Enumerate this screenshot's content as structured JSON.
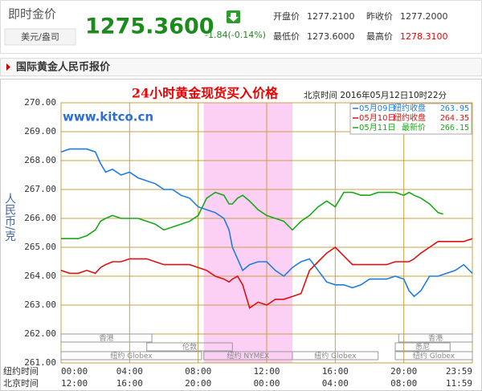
{
  "header": {
    "title": "即时金价",
    "unit": "美元/盎司",
    "price": "1275.3600",
    "change": "-1.84(-0.14%)",
    "quotes": [
      {
        "label": "开盘价",
        "value": "1277.2100"
      },
      {
        "label": "昨收价",
        "value": "1277.2000"
      },
      {
        "label": "最低价",
        "value": "1273.6000"
      },
      {
        "label": "最高价",
        "value": "1278.3100"
      }
    ]
  },
  "tab": "国际黄金人民币报价",
  "chart_data": {
    "type": "line",
    "title": "24小时黄金现货买入价格",
    "subtitle": "北京时间  2016年05月12日10时22分",
    "watermark": "www.kitco.cn",
    "y_label": "人民币/克",
    "ylim": [
      261,
      270
    ],
    "yticks": [
      {
        "value": 261,
        "label": "261.00"
      },
      {
        "value": 262,
        "label": "262.00"
      },
      {
        "value": 263,
        "label": "263.00"
      },
      {
        "value": 264,
        "label": "264.00"
      },
      {
        "value": 265,
        "label": "265.00"
      },
      {
        "value": 266,
        "label": "266.00"
      },
      {
        "value": 267,
        "label": "267.00"
      },
      {
        "value": 268,
        "label": "268.00"
      },
      {
        "value": 269,
        "label": "269.00"
      },
      {
        "value": 270,
        "label": "270.00"
      }
    ],
    "xlim": [
      0,
      24
    ],
    "x_axis_label": "纽约时间",
    "x2_axis_label": "北京时间",
    "xticks": [
      {
        "value": 0,
        "label": "00:00"
      },
      {
        "value": 4,
        "label": "04:00"
      },
      {
        "value": 8,
        "label": "08:00"
      },
      {
        "value": 12,
        "label": "12:00"
      },
      {
        "value": 16,
        "label": "16:00"
      },
      {
        "value": 20,
        "label": "20:00"
      },
      {
        "value": 24,
        "label": "23:59"
      }
    ],
    "x2_labels": [
      "12:00",
      "16:00",
      "20:00",
      "00:00",
      "04:00",
      "08:00",
      "11:59"
    ],
    "grid": true,
    "sessions": [
      {
        "label": "香港",
        "start": 0,
        "end": 5.3
      },
      {
        "label": "香港",
        "start": 19.7,
        "end": 24
      },
      {
        "label": "伦敦",
        "start": 5,
        "end": 10
      },
      {
        "label": "悉尼",
        "start": 19.5,
        "end": 22.7
      },
      {
        "label": "纽约 Globex",
        "start": 0,
        "end": 8.2
      },
      {
        "label": "纽约 NYMEX",
        "start": 8.33,
        "end": 13.5
      },
      {
        "label": "纽约 Globex",
        "start": 13.5,
        "end": 18.5
      },
      {
        "label": "纽约 Globex",
        "start": 19.5,
        "end": 24
      }
    ],
    "series": [
      {
        "name": "05月09日",
        "note": "纽约收盘",
        "last": 263.95,
        "color": "#1e7ce6",
        "x": [
          0,
          0.5,
          1,
          1.5,
          2,
          2.3,
          2.6,
          3,
          3.5,
          4,
          4.5,
          5,
          5.5,
          6,
          6.5,
          7,
          7.5,
          8,
          8.5,
          9,
          9.5,
          9.8,
          10,
          10.3,
          10.6,
          11,
          11.5,
          12,
          12.5,
          13,
          13.5,
          14,
          14.5,
          15,
          15.5,
          16,
          16.5,
          17,
          17.5,
          18,
          18.5,
          19,
          19.5,
          20,
          20.3,
          20.6,
          21,
          21.5,
          22,
          22.5,
          23,
          23.5,
          24
        ],
        "values": [
          268.3,
          268.4,
          268.4,
          268.4,
          268.3,
          267.9,
          267.6,
          267.7,
          267.5,
          267.6,
          267.4,
          267.3,
          267.2,
          267.0,
          267.0,
          266.8,
          266.7,
          266.4,
          266.3,
          266.2,
          266.0,
          265.6,
          265.0,
          264.6,
          264.2,
          264.4,
          264.5,
          264.5,
          264.2,
          264.0,
          264.3,
          264.5,
          264.6,
          264.2,
          263.8,
          263.7,
          263.7,
          263.6,
          263.7,
          263.9,
          263.9,
          263.9,
          264.0,
          263.9,
          263.5,
          263.3,
          263.5,
          264.0,
          264.0,
          264.1,
          264.2,
          264.4,
          264.1
        ]
      },
      {
        "name": "05月10日",
        "note": "纽约收盘",
        "last": 264.35,
        "color": "#e01010",
        "x": [
          0,
          0.5,
          1,
          1.5,
          2,
          2.3,
          2.6,
          3,
          3.5,
          4,
          4.5,
          5,
          5.5,
          6,
          6.5,
          7,
          7.5,
          8,
          8.5,
          9,
          9.5,
          9.8,
          10,
          10.3,
          10.6,
          11,
          11.5,
          12,
          12.5,
          13,
          13.5,
          14,
          14.5,
          15,
          15.5,
          16,
          16.5,
          17,
          17.5,
          18,
          18.5,
          19,
          19.5,
          20,
          20.3,
          20.6,
          21,
          21.5,
          22,
          22.5,
          23,
          23.5,
          24
        ],
        "values": [
          264.2,
          264.1,
          264.1,
          264.2,
          264.1,
          264.3,
          264.4,
          264.5,
          264.5,
          264.6,
          264.6,
          264.6,
          264.5,
          264.4,
          264.4,
          264.4,
          264.4,
          264.3,
          264.2,
          264.0,
          263.9,
          263.8,
          263.9,
          264.0,
          263.7,
          262.9,
          263.1,
          263.0,
          263.2,
          263.2,
          263.3,
          263.4,
          264.2,
          264.5,
          264.8,
          265.0,
          264.7,
          264.4,
          264.4,
          264.4,
          264.4,
          264.4,
          264.5,
          264.5,
          264.5,
          264.6,
          264.8,
          265.0,
          265.2,
          265.2,
          265.2,
          265.2,
          265.3
        ]
      },
      {
        "name": "05月11日",
        "note": "最新价",
        "last": 266.15,
        "color": "#18a818",
        "x": [
          0,
          0.5,
          1,
          1.5,
          2,
          2.3,
          2.6,
          3,
          3.5,
          4,
          4.5,
          5,
          5.5,
          6,
          6.5,
          7,
          7.5,
          8,
          8.5,
          9,
          9.5,
          9.8,
          10,
          10.3,
          10.6,
          11,
          11.5,
          12,
          12.5,
          13,
          13.5,
          14,
          14.5,
          15,
          15.5,
          16,
          16.5,
          17,
          17.5,
          18,
          18.5,
          19,
          19.5,
          20,
          20.3,
          20.6,
          21,
          21.5,
          22,
          22.3
        ],
        "values": [
          265.3,
          265.3,
          265.3,
          265.4,
          265.6,
          265.9,
          266.0,
          266.1,
          266.0,
          266.0,
          266.0,
          265.9,
          265.8,
          265.6,
          265.7,
          265.8,
          265.9,
          266.1,
          266.7,
          266.9,
          266.8,
          266.5,
          266.5,
          266.7,
          266.8,
          266.6,
          266.3,
          266.1,
          266.0,
          265.9,
          265.6,
          265.9,
          266.1,
          266.4,
          266.6,
          266.4,
          266.9,
          266.9,
          266.8,
          266.8,
          266.9,
          266.9,
          266.9,
          266.8,
          266.9,
          266.8,
          266.7,
          266.5,
          266.2,
          266.15
        ]
      }
    ]
  }
}
